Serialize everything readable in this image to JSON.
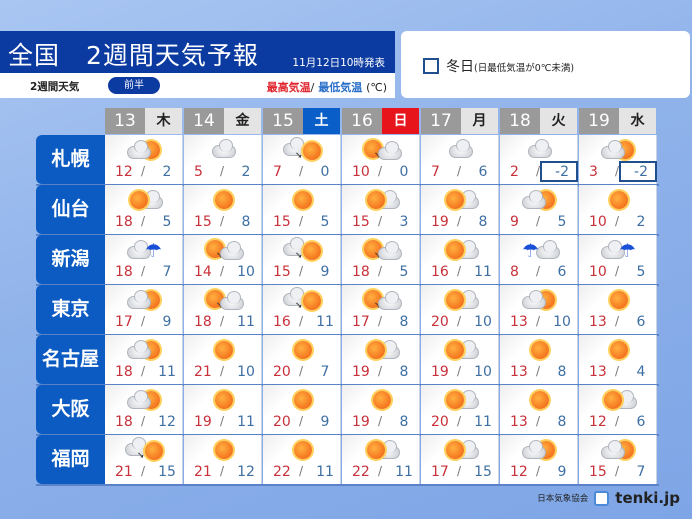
{
  "header": {
    "title": "全国　2週間天気予報",
    "issued": "11月12日10時発表",
    "sub_label": "2週間天気",
    "period_pill": "前半",
    "temp_high_label": "最高気温",
    "temp_sep": "/",
    "temp_low_label": "最低気温",
    "temp_unit": "(℃)"
  },
  "legend": {
    "winter_day_label": "冬日",
    "winter_day_note": "(日最低気温が0℃未満)"
  },
  "days": [
    {
      "date": "13",
      "weekday": "木",
      "type": "weekday"
    },
    {
      "date": "14",
      "weekday": "金",
      "type": "weekday"
    },
    {
      "date": "15",
      "weekday": "土",
      "type": "saturday"
    },
    {
      "date": "16",
      "weekday": "日",
      "type": "sunday"
    },
    {
      "date": "17",
      "weekday": "月",
      "type": "weekday"
    },
    {
      "date": "18",
      "weekday": "火",
      "type": "weekday"
    },
    {
      "date": "19",
      "weekday": "水",
      "type": "weekday"
    }
  ],
  "cities": [
    {
      "name": "札幌",
      "forecast": [
        {
          "icon": "cloud-sun",
          "high": "12",
          "low": "2"
        },
        {
          "icon": "cloud",
          "high": "5",
          "low": "2"
        },
        {
          "icon": "cloud-then-sun",
          "high": "7",
          "low": "0"
        },
        {
          "icon": "sun-then-cloud",
          "high": "10",
          "low": "0"
        },
        {
          "icon": "cloud",
          "high": "7",
          "low": "6"
        },
        {
          "icon": "cloud",
          "high": "2",
          "low": "-2",
          "winter_day": true
        },
        {
          "icon": "cloud-sun",
          "high": "3",
          "low": "-2",
          "winter_day": true
        }
      ]
    },
    {
      "name": "仙台",
      "forecast": [
        {
          "icon": "sun-cloud",
          "high": "18",
          "low": "5"
        },
        {
          "icon": "sun",
          "high": "15",
          "low": "8"
        },
        {
          "icon": "sun",
          "high": "15",
          "low": "5"
        },
        {
          "icon": "sun-cloud",
          "high": "15",
          "low": "3"
        },
        {
          "icon": "sun-cloud",
          "high": "19",
          "low": "8"
        },
        {
          "icon": "cloud-sun",
          "high": "9",
          "low": "5"
        },
        {
          "icon": "sun",
          "high": "10",
          "low": "2"
        }
      ]
    },
    {
      "name": "新潟",
      "forecast": [
        {
          "icon": "cloud-rain",
          "high": "18",
          "low": "7"
        },
        {
          "icon": "sun-then-cloud",
          "high": "14",
          "low": "10"
        },
        {
          "icon": "cloud-then-sun",
          "high": "15",
          "low": "9"
        },
        {
          "icon": "sun-then-cloud",
          "high": "18",
          "low": "5"
        },
        {
          "icon": "sun-cloud",
          "high": "16",
          "low": "11"
        },
        {
          "icon": "rain-cloud",
          "high": "8",
          "low": "6"
        },
        {
          "icon": "cloud-rain",
          "high": "10",
          "low": "5"
        }
      ]
    },
    {
      "name": "東京",
      "forecast": [
        {
          "icon": "cloud-sun",
          "high": "17",
          "low": "9"
        },
        {
          "icon": "sun-then-cloud",
          "high": "18",
          "low": "11"
        },
        {
          "icon": "cloud-then-sun",
          "high": "16",
          "low": "11"
        },
        {
          "icon": "sun-then-cloud",
          "high": "17",
          "low": "8"
        },
        {
          "icon": "sun-cloud",
          "high": "20",
          "low": "10"
        },
        {
          "icon": "cloud-sun",
          "high": "13",
          "low": "10"
        },
        {
          "icon": "sun",
          "high": "13",
          "low": "6"
        }
      ]
    },
    {
      "name": "名古屋",
      "forecast": [
        {
          "icon": "cloud-sun",
          "high": "18",
          "low": "11"
        },
        {
          "icon": "sun",
          "high": "21",
          "low": "10"
        },
        {
          "icon": "sun",
          "high": "20",
          "low": "7"
        },
        {
          "icon": "sun-cloud",
          "high": "19",
          "low": "8"
        },
        {
          "icon": "sun-cloud",
          "high": "19",
          "low": "10"
        },
        {
          "icon": "sun",
          "high": "13",
          "low": "8"
        },
        {
          "icon": "sun",
          "high": "13",
          "low": "4"
        }
      ]
    },
    {
      "name": "大阪",
      "forecast": [
        {
          "icon": "cloud-sun",
          "high": "18",
          "low": "12"
        },
        {
          "icon": "sun",
          "high": "19",
          "low": "11"
        },
        {
          "icon": "sun",
          "high": "20",
          "low": "9"
        },
        {
          "icon": "sun",
          "high": "19",
          "low": "8"
        },
        {
          "icon": "sun-cloud",
          "high": "20",
          "low": "11"
        },
        {
          "icon": "sun",
          "high": "13",
          "low": "8"
        },
        {
          "icon": "sun-cloud",
          "high": "12",
          "low": "6"
        }
      ]
    },
    {
      "name": "福岡",
      "forecast": [
        {
          "icon": "cloud-then-sun",
          "high": "21",
          "low": "15"
        },
        {
          "icon": "sun",
          "high": "21",
          "low": "12"
        },
        {
          "icon": "sun",
          "high": "22",
          "low": "11"
        },
        {
          "icon": "sun-cloud",
          "high": "22",
          "low": "11"
        },
        {
          "icon": "sun-cloud",
          "high": "17",
          "low": "15"
        },
        {
          "icon": "cloud-sun",
          "high": "12",
          "low": "9"
        },
        {
          "icon": "cloud-sun",
          "high": "15",
          "low": "7"
        }
      ]
    }
  ],
  "footer": {
    "org": "日本気象協会",
    "brand": "tenki.jp"
  },
  "colors": {
    "title_bg": "#0b3aa0",
    "row_label_bg": "#0b5bc3",
    "saturday": "#0a5ec8",
    "sunday": "#e8141c",
    "high_temp": "#c8303a",
    "low_temp": "#3e6fa3",
    "winter_day_border": "#1f4f8c"
  }
}
